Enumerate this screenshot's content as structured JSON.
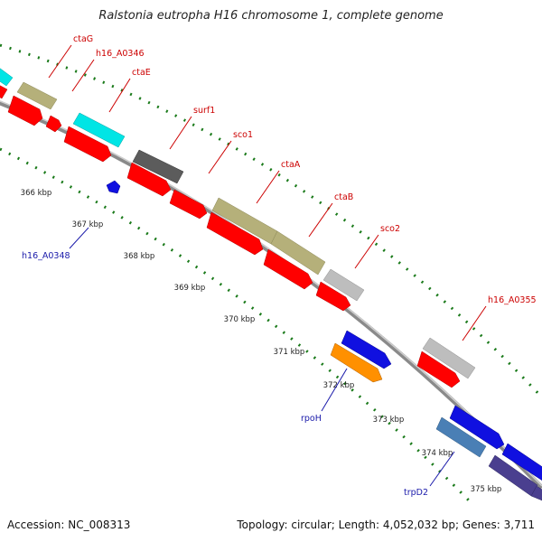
{
  "title": "Ralstonia eutropha H16 chromosome 1, complete genome",
  "footer": {
    "accession": "Accession: NC_008313",
    "summary": "Topology: circular; Length: 4,052,032 bp; Genes: 3,711"
  },
  "ruler": [
    "366 kbp",
    "367 kbp",
    "368 kbp",
    "369 kbp",
    "370 kbp",
    "371 kbp",
    "372 kbp",
    "373 kbp",
    "374 kbp",
    "375 kbp"
  ],
  "labels_forward": [
    "ctaG",
    "h16_A0346",
    "ctaE",
    "surf1",
    "sco1",
    "ctaA",
    "ctaB",
    "sco2",
    "h16_A0355"
  ],
  "labels_reverse": [
    "h16_A0348",
    "rpoH",
    "trpD2"
  ],
  "colors": {
    "backbone": "#888888",
    "forward_label": "#cc0000",
    "reverse_label": "#1a1aaa",
    "cds": "#ff0000",
    "tick": "#1a7a1a"
  }
}
